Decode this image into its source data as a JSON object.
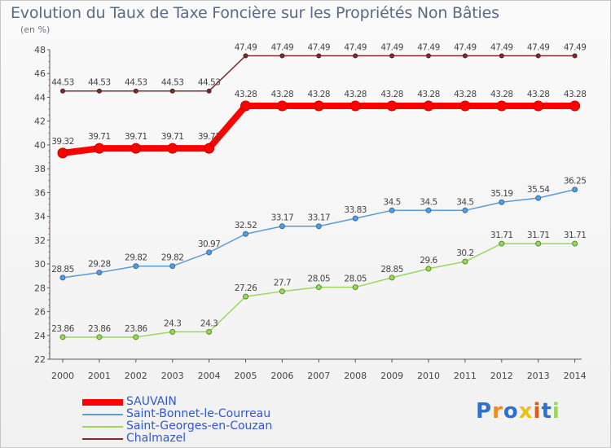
{
  "header": {
    "title": "Evolution du Taux de Taxe Foncière sur les Propriétés Non Bâties",
    "subtitle": "(en %)"
  },
  "chart_data": {
    "type": "line",
    "title": "Evolution du Taux de Taxe Foncière sur les Propriétés Non Bâties",
    "ylabel": "(en %)",
    "xlabel": "",
    "categories": [
      "2000",
      "2001",
      "2002",
      "2003",
      "2004",
      "2005",
      "2006",
      "2007",
      "2008",
      "2009",
      "2010",
      "2011",
      "2012",
      "2013",
      "2014"
    ],
    "ylim": [
      22,
      48
    ],
    "yticks": [
      22,
      24,
      26,
      28,
      30,
      32,
      34,
      36,
      38,
      40,
      42,
      44,
      46,
      48
    ],
    "grid": false,
    "legend_position": "bottom-left",
    "series": [
      {
        "name": "SAUVAIN",
        "color": "#ff0000",
        "values": [
          39.32,
          39.71,
          39.71,
          39.71,
          39.71,
          43.28,
          43.28,
          43.28,
          43.28,
          43.28,
          43.28,
          43.28,
          43.28,
          43.28,
          43.28
        ],
        "labels": [
          "39.32",
          "39.71",
          "39.71",
          "39.71",
          "39.71",
          "43.28",
          "43.28",
          "43.28",
          "43.28",
          "43.28",
          "43.28",
          "43.28",
          "43.28",
          "43.28",
          "43.28"
        ]
      },
      {
        "name": "Saint-Bonnet-le-Courreau",
        "color": "#5b9bd5",
        "values": [
          28.85,
          29.28,
          29.82,
          29.82,
          30.97,
          32.52,
          33.17,
          33.17,
          33.83,
          34.5,
          34.5,
          34.5,
          35.19,
          35.54,
          36.25
        ],
        "labels": [
          "28.85",
          "29.28",
          "29.82",
          "29.82",
          "30.97",
          "32.52",
          "33.17",
          "33.17",
          "33.83",
          "34.5",
          "34.5",
          "34.5",
          "35.19",
          "35.54",
          "36.25"
        ]
      },
      {
        "name": "Saint-Georges-en-Couzan",
        "color": "#9ad85a",
        "values": [
          23.86,
          23.86,
          23.86,
          24.3,
          24.3,
          27.26,
          27.7,
          28.05,
          28.05,
          28.85,
          29.6,
          30.2,
          31.71,
          31.71,
          31.71
        ],
        "labels": [
          "23.86",
          "23.86",
          "23.86",
          "24.3",
          "24.3",
          "27.26",
          "27.7",
          "28.05",
          "28.05",
          "28.85",
          "29.6",
          "30.2",
          "31.71",
          "31.71",
          "31.71"
        ]
      },
      {
        "name": "Chalmazel",
        "color": "#7a2e2e",
        "values": [
          44.53,
          44.53,
          44.53,
          44.53,
          44.53,
          47.49,
          47.49,
          47.49,
          47.49,
          47.49,
          47.49,
          47.49,
          47.49,
          47.49,
          47.49
        ],
        "labels": [
          "44.53",
          "44.53",
          "44.53",
          "44.53",
          "44.53",
          "47.49",
          "47.49",
          "47.49",
          "47.49",
          "47.49",
          "47.49",
          "47.49",
          "47.49",
          "47.49",
          "47.49"
        ]
      }
    ]
  },
  "logo": {
    "letters": [
      "P",
      "r",
      "o",
      "x",
      "i",
      "t",
      "i"
    ],
    "colors": [
      "#2f6fcf",
      "#f08a1c",
      "#2f6fcf",
      "#e8c21a",
      "#e05a1a",
      "#2f6fcf",
      "#9ad85a"
    ]
  }
}
